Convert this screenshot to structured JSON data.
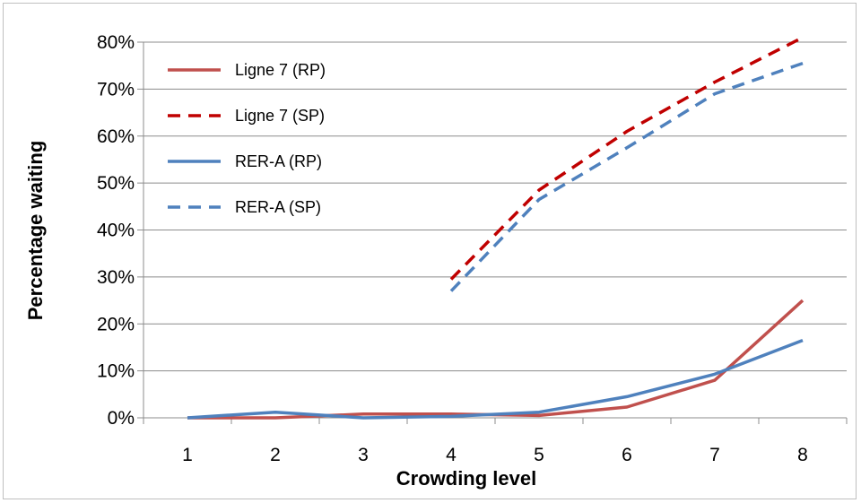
{
  "chart_data": {
    "type": "line",
    "xlabel": "Crowding level",
    "ylabel": "Percentage waiting",
    "categories": [
      "1",
      "2",
      "3",
      "4",
      "5",
      "6",
      "7",
      "8"
    ],
    "y_ticks": [
      "0%",
      "10%",
      "20%",
      "30%",
      "40%",
      "50%",
      "60%",
      "70%",
      "80%"
    ],
    "ylim": [
      0,
      80
    ],
    "grid": "horizontal",
    "legend_position": "top-left",
    "series": [
      {
        "name": "Ligne 7 (RP)",
        "color": "#c0504d",
        "dash": "solid",
        "values": [
          0,
          0,
          0.8,
          0.8,
          0.5,
          2.3,
          8,
          25
        ]
      },
      {
        "name": "Ligne 7 (SP)",
        "color": "#c00000",
        "dash": "dashed",
        "values": [
          null,
          null,
          null,
          29.5,
          48.5,
          61,
          71.5,
          81
        ]
      },
      {
        "name": "RER-A (RP)",
        "color": "#4f81bd",
        "dash": "solid",
        "values": [
          0,
          1.2,
          0,
          0.3,
          1.2,
          4.5,
          9.3,
          16.5
        ]
      },
      {
        "name": "RER-A (SP)",
        "color": "#4f81bd",
        "dash": "dashed",
        "values": [
          null,
          null,
          null,
          27,
          46.5,
          57.5,
          69,
          75.5
        ]
      }
    ]
  }
}
